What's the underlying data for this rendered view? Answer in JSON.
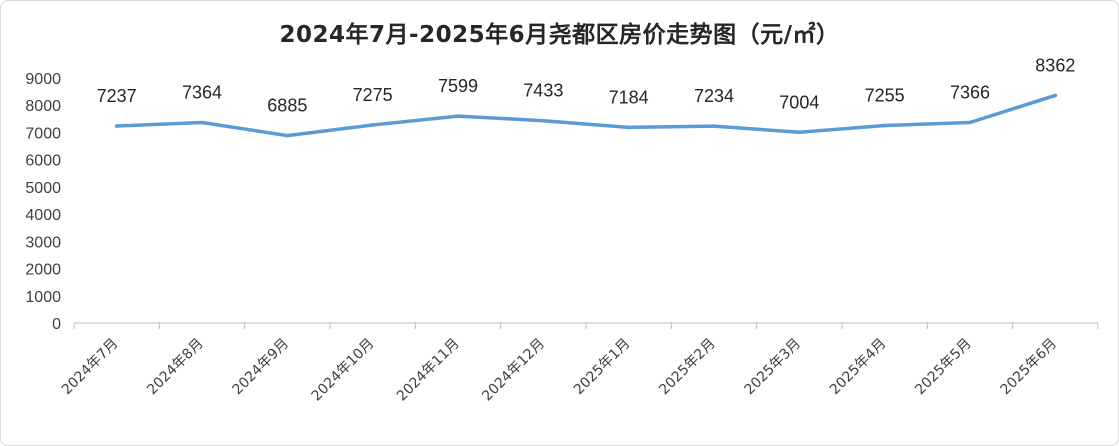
{
  "chart_data": {
    "type": "line",
    "title": "2024年7月-2025年6月尧都区房价走势图（元/㎡）",
    "xlabel": "",
    "ylabel": "",
    "categories": [
      "2024年7月",
      "2024年8月",
      "2024年9月",
      "2024年10月",
      "2024年11月",
      "2024年12月",
      "2025年1月",
      "2025年2月",
      "2025年3月",
      "2025年4月",
      "2025年5月",
      "2025年6月"
    ],
    "series": [
      {
        "values": [
          7237,
          7364,
          6885,
          7275,
          7599,
          7433,
          7184,
          7234,
          7004,
          7255,
          7366,
          8362
        ]
      }
    ],
    "ylim": [
      0,
      9000
    ],
    "yticks": [
      0,
      1000,
      2000,
      3000,
      4000,
      5000,
      6000,
      7000,
      8000,
      9000
    ],
    "grid": false,
    "legend": "none",
    "line_color": "#5b9bd5"
  }
}
